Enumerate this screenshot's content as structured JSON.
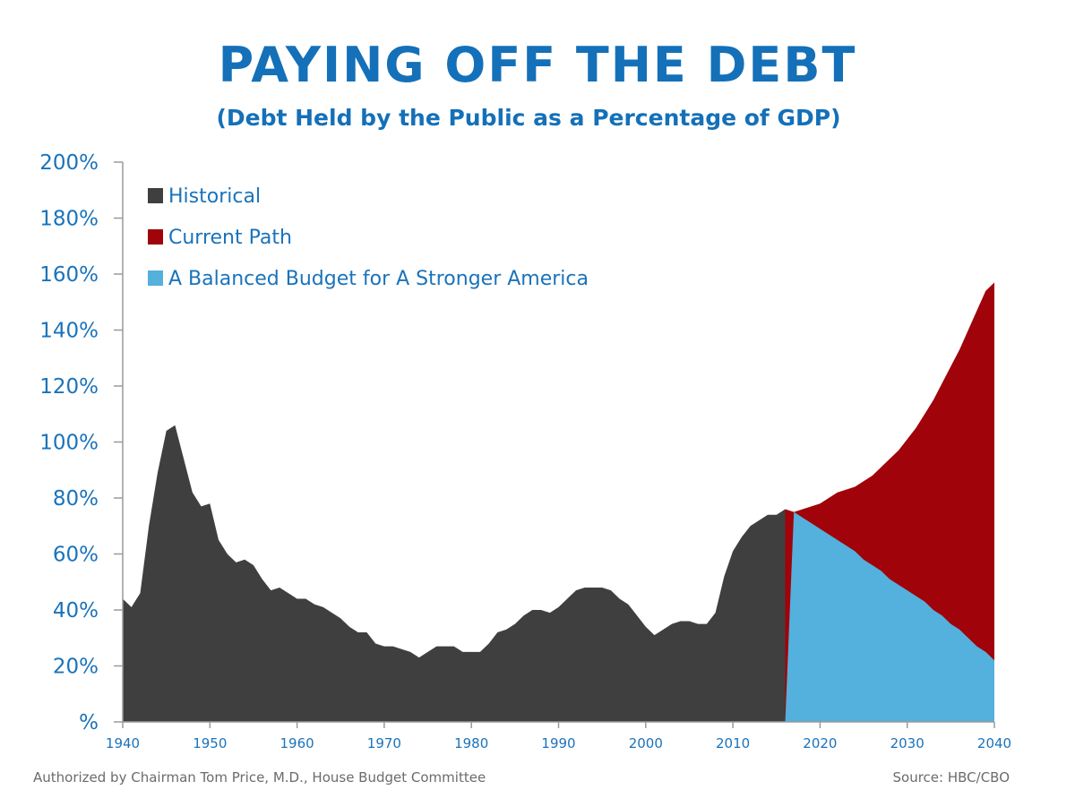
{
  "chart_data": {
    "type": "area",
    "title": "PAYING OFF THE DEBT",
    "subtitle": "(Debt Held by the Public as a Percentage of GDP)",
    "xlabel": "",
    "ylabel": "",
    "xlim": [
      1940,
      2040
    ],
    "ylim": [
      0,
      200
    ],
    "y_ticks": [
      {
        "value": 0,
        "label": "%"
      },
      {
        "value": 20,
        "label": "20%"
      },
      {
        "value": 40,
        "label": "40%"
      },
      {
        "value": 60,
        "label": "60%"
      },
      {
        "value": 80,
        "label": "80%"
      },
      {
        "value": 100,
        "label": "100%"
      },
      {
        "value": 120,
        "label": "120%"
      },
      {
        "value": 140,
        "label": "140%"
      },
      {
        "value": 160,
        "label": "160%"
      },
      {
        "value": 180,
        "label": "180%"
      },
      {
        "value": 200,
        "label": "200%"
      }
    ],
    "x_ticks": [
      {
        "value": 1940,
        "label": "1940"
      },
      {
        "value": 1950,
        "label": "1950"
      },
      {
        "value": 1960,
        "label": "1960"
      },
      {
        "value": 1970,
        "label": "1970"
      },
      {
        "value": 1980,
        "label": "1980"
      },
      {
        "value": 1990,
        "label": "1990"
      },
      {
        "value": 2000,
        "label": "2000"
      },
      {
        "value": 2010,
        "label": "2010"
      },
      {
        "value": 2020,
        "label": "2020"
      },
      {
        "value": 2030,
        "label": "2030"
      },
      {
        "value": 2040,
        "label": "2040"
      }
    ],
    "legend_position": "top-left",
    "grid": false,
    "series": [
      {
        "name": "Historical",
        "color": "#3f3f3f",
        "x": [
          1940,
          1941,
          1942,
          1943,
          1944,
          1945,
          1946,
          1947,
          1948,
          1949,
          1950,
          1951,
          1952,
          1953,
          1954,
          1955,
          1956,
          1957,
          1958,
          1959,
          1960,
          1961,
          1962,
          1963,
          1964,
          1965,
          1966,
          1967,
          1968,
          1969,
          1970,
          1971,
          1972,
          1973,
          1974,
          1975,
          1976,
          1977,
          1978,
          1979,
          1980,
          1981,
          1982,
          1983,
          1984,
          1985,
          1986,
          1987,
          1988,
          1989,
          1990,
          1991,
          1992,
          1993,
          1994,
          1995,
          1996,
          1997,
          1998,
          1999,
          2000,
          2001,
          2002,
          2003,
          2004,
          2005,
          2006,
          2007,
          2008,
          2009,
          2010,
          2011,
          2012,
          2013,
          2014,
          2015,
          2016
        ],
        "values": [
          44,
          41,
          46,
          70,
          89,
          104,
          106,
          94,
          82,
          77,
          78,
          65,
          60,
          57,
          58,
          56,
          51,
          47,
          48,
          46,
          44,
          44,
          42,
          41,
          39,
          37,
          34,
          32,
          32,
          28,
          27,
          27,
          26,
          25,
          23,
          25,
          27,
          27,
          27,
          25,
          25,
          25,
          28,
          32,
          33,
          35,
          38,
          40,
          40,
          39,
          41,
          44,
          47,
          48,
          48,
          48,
          47,
          44,
          42,
          38,
          34,
          31,
          33,
          35,
          36,
          36,
          35,
          35,
          39,
          52,
          61,
          66,
          70,
          72,
          74,
          74,
          76
        ]
      },
      {
        "name": "Current Path",
        "color": "#a00309",
        "x": [
          2016,
          2017,
          2018,
          2019,
          2020,
          2021,
          2022,
          2023,
          2024,
          2025,
          2026,
          2027,
          2028,
          2029,
          2030,
          2031,
          2032,
          2033,
          2034,
          2035,
          2036,
          2037,
          2038,
          2039,
          2040
        ],
        "values": [
          76,
          75,
          76,
          77,
          78,
          80,
          82,
          83,
          84,
          86,
          88,
          91,
          94,
          97,
          101,
          105,
          110,
          115,
          121,
          127,
          133,
          140,
          147,
          154,
          157
        ]
      },
      {
        "name": "A Balanced Budget for A Stronger America",
        "color": "#54b0dc",
        "x": [
          2016,
          2017,
          2018,
          2019,
          2020,
          2021,
          2022,
          2023,
          2024,
          2025,
          2026,
          2027,
          2028,
          2029,
          2030,
          2031,
          2032,
          2033,
          2034,
          2035,
          2036,
          2037,
          2038,
          2039,
          2040
        ],
        "values": [
          0,
          75,
          73,
          71,
          69,
          67,
          65,
          63,
          61,
          58,
          56,
          54,
          51,
          49,
          47,
          45,
          43,
          40,
          38,
          35,
          33,
          30,
          27,
          25,
          22
        ]
      }
    ],
    "footer_left": "Authorized by Chairman Tom Price, M.D., House Budget Committee",
    "footer_right": "Source: HBC/CBO"
  }
}
